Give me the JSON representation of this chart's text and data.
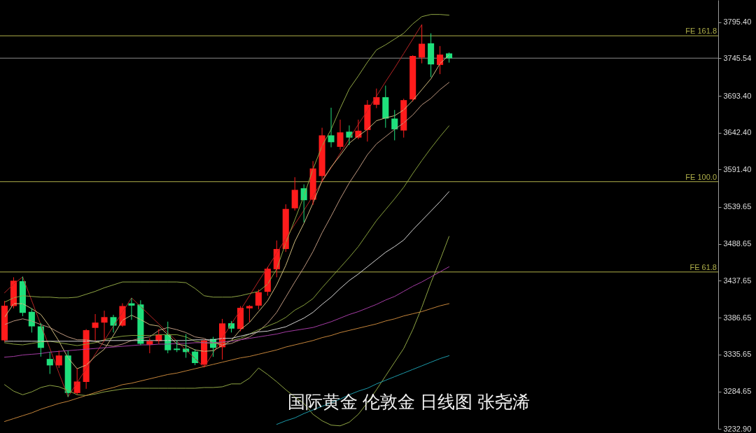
{
  "chart_data": {
    "type": "candlestick",
    "categories": [
      null,
      null,
      null,
      null,
      null,
      null,
      null,
      null,
      null,
      null,
      null,
      null,
      null,
      null,
      null,
      null,
      null,
      null,
      null,
      null,
      null,
      null,
      null,
      null,
      null,
      null,
      null,
      null,
      null,
      null,
      null,
      null,
      null,
      null,
      null,
      null,
      null,
      null,
      null,
      null,
      null,
      null,
      null,
      null,
      null,
      null,
      null,
      null,
      null,
      null
    ],
    "ohlc": [
      [
        3355.3,
        3409.7,
        3353.4,
        3403.3
      ],
      [
        3402.7,
        3442.5,
        3399.5,
        3437.7
      ],
      [
        3437.1,
        3443.4,
        3388.7,
        3393.2
      ],
      [
        3394.7,
        3399.5,
        3366.0,
        3374.6
      ],
      [
        3374.6,
        3379.1,
        3332.7,
        3344.8
      ],
      [
        3329.5,
        3339.0,
        3308.8,
        3320.6
      ],
      [
        3320.6,
        3341.0,
        3317.1,
        3334.3
      ],
      [
        3334.3,
        3341.0,
        3277.0,
        3282.4
      ],
      [
        3282.4,
        3316.8,
        3280.2,
        3298.3
      ],
      [
        3297.7,
        3370.8,
        3288.2,
        3369.3
      ],
      [
        3372.5,
        3391.6,
        3355.0,
        3379.8
      ],
      [
        3379.8,
        3396.3,
        3355.0,
        3387.4
      ],
      [
        3387.4,
        3390.6,
        3366.1,
        3375.6
      ],
      [
        3375.6,
        3406.5,
        3374.1,
        3402.7
      ],
      [
        3406.5,
        3413.8,
        3383.6,
        3403.3
      ],
      [
        3404.9,
        3410.7,
        3348.6,
        3350.5
      ],
      [
        3349.3,
        3358.1,
        3337.4,
        3354.3
      ],
      [
        3354.3,
        3370.8,
        3350.2,
        3362.9
      ],
      [
        3362.9,
        3381.1,
        3337.4,
        3341.6
      ],
      [
        3343.8,
        3355.6,
        3339.0,
        3341.9
      ],
      [
        3343.8,
        3363.9,
        3331.1,
        3339.0
      ],
      [
        3339.7,
        3342.9,
        3320.9,
        3323.8
      ],
      [
        3321.6,
        3356.5,
        3318.3,
        3355.0
      ],
      [
        3357.2,
        3360.1,
        3332.4,
        3344.8
      ],
      [
        3345.7,
        3384.9,
        3328.6,
        3378.7
      ],
      [
        3378.9,
        3382.0,
        3366.1,
        3371.5
      ],
      [
        3371.0,
        3402.7,
        3367.7,
        3400.2
      ],
      [
        3399.5,
        3404.0,
        3380.4,
        3402.7
      ],
      [
        3403.3,
        3425.6,
        3398.0,
        3421.8
      ],
      [
        3422.4,
        3456.8,
        3417.0,
        3454.3
      ],
      [
        3453.6,
        3493.4,
        3442.5,
        3481.6
      ],
      [
        3481.6,
        3543.4,
        3477.5,
        3537.0
      ],
      [
        3537.9,
        3580.9,
        3534.8,
        3563.4
      ],
      [
        3565.6,
        3571.0,
        3518.5,
        3549.1
      ],
      [
        3549.8,
        3603.2,
        3542.7,
        3593.0
      ],
      [
        3582.5,
        3649.3,
        3574.6,
        3638.8
      ],
      [
        3638.8,
        3677.0,
        3622.3,
        3629.3
      ],
      [
        3622.9,
        3660.5,
        3619.1,
        3642.9
      ],
      [
        3643.9,
        3652.5,
        3625.5,
        3635.7
      ],
      [
        3635.7,
        3660.5,
        3633.4,
        3645.2
      ],
      [
        3646.2,
        3687.5,
        3630.2,
        3681.1
      ],
      [
        3681.1,
        3703.5,
        3676.4,
        3691.6
      ],
      [
        3691.6,
        3707.6,
        3649.3,
        3662.0
      ],
      [
        3662.0,
        3673.9,
        3631.9,
        3647.1
      ],
      [
        3645.5,
        3689.4,
        3635.7,
        3687.5
      ],
      [
        3688.5,
        3749.6,
        3685.6,
        3748.6
      ],
      [
        3746.4,
        3791.6,
        3738.4,
        3765.5
      ],
      [
        3766.1,
        3779.9,
        3719.3,
        3736.9
      ],
      [
        3736.2,
        3762.3,
        3723.5,
        3750.5
      ],
      [
        3752.1,
        3753.4,
        3739.4,
        3745.5
      ]
    ],
    "colors": [
      "#ff1c1c",
      "#ff1c1c",
      "#1fe07c",
      "#1fe07c",
      "#1fe07c",
      "#1fe07c",
      "#ff1c1c",
      "#1fe07c",
      "#ff1c1c",
      "#ff1c1c",
      "#ff1c1c",
      "#ff1c1c",
      "#1fe07c",
      "#ff1c1c",
      "#1fe07c",
      "#1fe07c",
      "#ff1c1c",
      "#ff1c1c",
      "#1fe07c",
      "#1fe07c",
      "#1fe07c",
      "#1fe07c",
      "#ff1c1c",
      "#1fe07c",
      "#ff1c1c",
      "#1fe07c",
      "#ff1c1c",
      "#ff1c1c",
      "#ff1c1c",
      "#ff1c1c",
      "#ff1c1c",
      "#ff1c1c",
      "#ff1c1c",
      "#1fe07c",
      "#ff1c1c",
      "#ff1c1c",
      "#1fe07c",
      "#ff1c1c",
      "#1fe07c",
      "#ff1c1c",
      "#ff1c1c",
      "#ff1c1c",
      "#1fe07c",
      "#1fe07c",
      "#ff1c1c",
      "#ff1c1c",
      "#ff1c1c",
      "#1fe07c",
      "#ff1c1c",
      "#1fe07c"
    ],
    "series": [
      {
        "type": "line",
        "color": "#b42424",
        "values": [
          3421,
          3433,
          3443,
          3410,
          3377,
          3344,
          3310,
          3277,
          3297,
          3316,
          3336,
          3355,
          3375,
          3394,
          3414,
          3402,
          3390,
          3378,
          3366,
          3354,
          3342,
          3330,
          3318,
          3338,
          3358,
          3378,
          3397,
          3417,
          3437,
          3456,
          3476,
          3496,
          3516,
          3535,
          3555,
          3575,
          3594,
          3614,
          3634,
          3654,
          3673,
          3693,
          3713,
          3732,
          3752,
          3772,
          3792,
          null,
          null,
          null
        ]
      },
      {
        "type": "line",
        "color": "#cdb97c",
        "values": [
          3387,
          3406,
          3406,
          3399,
          3391,
          3374,
          3354,
          3331,
          3316,
          3321,
          3333,
          3343,
          3362,
          3383,
          3390,
          3384,
          3377,
          3375,
          3363,
          3350,
          3348,
          3342,
          3340,
          3341,
          3348,
          3355,
          3370,
          3380,
          3395,
          3410,
          3432,
          3459,
          3492,
          3517,
          3545,
          3576,
          3595,
          3611,
          3628,
          3638,
          3647,
          3659,
          3663,
          3666,
          3674,
          3687,
          3702,
          3717,
          3738,
          3750
        ]
      },
      {
        "type": "line",
        "color": "#bc967e",
        "values": [
          3377,
          3382,
          3385,
          3382,
          3377,
          3373,
          3366,
          3360,
          3356,
          3356,
          3354,
          3349,
          3347,
          3350,
          3355,
          3358,
          3360,
          3369,
          3373,
          3370,
          3366,
          3360,
          3358,
          3352,
          3349,
          3351,
          3356,
          3360,
          3368,
          3379,
          3394,
          3415,
          3436,
          3456,
          3478,
          3504,
          3527,
          3551,
          3573,
          3592,
          3612,
          3627,
          3637,
          3647,
          3656,
          3667,
          3681,
          3690,
          3702,
          3712
        ]
      },
      {
        "type": "line",
        "color": "#8fa544",
        "values": [
          3408,
          3414,
          3417,
          3416,
          3415,
          3415,
          3414,
          3414,
          3415,
          3419,
          3423,
          3428,
          3432,
          3436,
          3436,
          3436,
          3436,
          3436,
          3436,
          3436,
          3435,
          3427,
          3417,
          3415,
          3415,
          3415,
          3417,
          3420,
          3423,
          3433,
          3454,
          3490,
          3522,
          3555,
          3592,
          3624,
          3647,
          3676,
          3703,
          3721,
          3740,
          3757,
          3764,
          3772,
          3780,
          3793,
          3803,
          3806,
          3806,
          3805
        ]
      },
      {
        "type": "line",
        "color": "#869f3c",
        "values": [
          3352,
          3350,
          3349,
          3351,
          3353,
          3354,
          3352,
          3350,
          3348,
          3350,
          3352,
          3356,
          3359,
          3361,
          3362,
          3362,
          3362,
          3363,
          3363,
          3363,
          3360,
          3354,
          3352,
          3351,
          3352,
          3355,
          3358,
          3364,
          3370,
          3375,
          3380,
          3387,
          3397,
          3404,
          3413,
          3428,
          3442,
          3456,
          3470,
          3485,
          3503,
          3521,
          3536,
          3551,
          3567,
          3586,
          3604,
          3621,
          3637,
          3652
        ]
      },
      {
        "type": "line",
        "color": "#8fa544",
        "values": [
          3294,
          3285,
          3280,
          3284,
          3290,
          3293,
          3291,
          3286,
          3280,
          3279,
          3281,
          3284,
          3286,
          3288,
          3289,
          3289,
          3289,
          3289,
          3289,
          3289,
          3289,
          3289,
          3290,
          3290,
          3291,
          3295,
          3295,
          3303,
          3317,
          3308,
          3298,
          3287,
          3277,
          3268,
          3253,
          3244,
          3238,
          3237,
          3242,
          3253,
          3269,
          3287,
          3306,
          3325,
          3344,
          3370,
          3401,
          3435,
          3466,
          3499
        ]
      },
      {
        "type": "line",
        "color": "#d4d4d4",
        "values": [
          3354,
          3354,
          3354,
          3354,
          3354,
          3354,
          3354,
          3354,
          3354,
          3354,
          3354,
          3355,
          3355,
          3355,
          3355,
          3355,
          3355,
          3355,
          3355,
          3355,
          3355,
          3356,
          3356,
          3356,
          3358,
          3358,
          3361,
          3364,
          3367,
          3368,
          3371,
          3374,
          3380,
          3386,
          3394,
          3405,
          3415,
          3427,
          3438,
          3447,
          3457,
          3467,
          3477,
          3485,
          3494,
          3508,
          3521,
          3534,
          3547,
          3561
        ]
      },
      {
        "type": "line",
        "color": "#a43ca4",
        "values": [
          3332,
          3333,
          3335,
          3336,
          3337,
          3339,
          3340,
          3341,
          3342,
          3343,
          3344,
          3345,
          3346,
          3347,
          3348,
          3349,
          3349,
          3350,
          3350,
          3351,
          3351,
          3352,
          3352,
          3352,
          3353,
          3354,
          3356,
          3358,
          3360,
          3362,
          3364,
          3367,
          3369,
          3371,
          3373,
          3377,
          3381,
          3386,
          3391,
          3395,
          3400,
          3405,
          3411,
          3416,
          3423,
          3430,
          3436,
          3443,
          3450,
          3457
        ]
      },
      {
        "type": "line",
        "color": "#c4843a",
        "values": [
          3243,
          3247,
          3251,
          3255,
          3260,
          3264,
          3268,
          3271,
          3275,
          3279,
          3283,
          3287,
          3290,
          3294,
          3296,
          3299,
          3302,
          3305,
          3308,
          3310,
          3313,
          3316,
          3319,
          3322,
          3325,
          3328,
          3331,
          3333,
          3336,
          3339,
          3342,
          3346,
          3349,
          3352,
          3355,
          3359,
          3362,
          3366,
          3369,
          3372,
          3375,
          3378,
          3382,
          3385,
          3389,
          3392,
          3395,
          3399,
          3403,
          3406
        ]
      },
      {
        "type": "line",
        "color": "#1c9aaa",
        "values": [
          null,
          null,
          null,
          null,
          null,
          null,
          null,
          null,
          null,
          null,
          null,
          null,
          null,
          null,
          null,
          null,
          null,
          null,
          null,
          null,
          null,
          null,
          null,
          null,
          null,
          null,
          null,
          null,
          null,
          null,
          3239,
          3244,
          3248,
          3254,
          3259,
          3264,
          3269,
          3274,
          3280,
          3285,
          3289,
          3295,
          3300,
          3305,
          3310,
          3315,
          3320,
          3325,
          3330,
          3334
        ]
      }
    ],
    "ylim": [
      3232.9,
      3826.0
    ],
    "yticks": [
      {
        "value": 3795.4,
        "label": "3795.40"
      },
      3745.54,
      {
        "value": 3693.4,
        "label": "3693.40"
      },
      {
        "value": 3642.4,
        "label": "3642.40"
      },
      {
        "value": 3591.4,
        "label": "3591.40"
      },
      3539.65,
      3488.65,
      3437.65,
      3386.65,
      3335.65,
      3284.65,
      {
        "value": 3232.9,
        "label": "3232.90"
      }
    ],
    "ref_lines": [
      {
        "axis": "y",
        "value": 3776.5,
        "label": "FE 161.8",
        "color": "#b0b04a"
      },
      {
        "axis": "y",
        "value": 3574.7,
        "label": "FE 100.0",
        "color": "#b0b04a"
      },
      {
        "axis": "y",
        "value": 3449.8,
        "label": "FE 61.8",
        "color": "#b0b04a"
      },
      {
        "axis": "y",
        "value": 3745.54,
        "color": "#8c8c8c"
      }
    ],
    "annotations": [
      "国际黄金 伦敦金 日线图 张尧浠"
    ],
    "grid": false,
    "tick_labels": "y"
  }
}
